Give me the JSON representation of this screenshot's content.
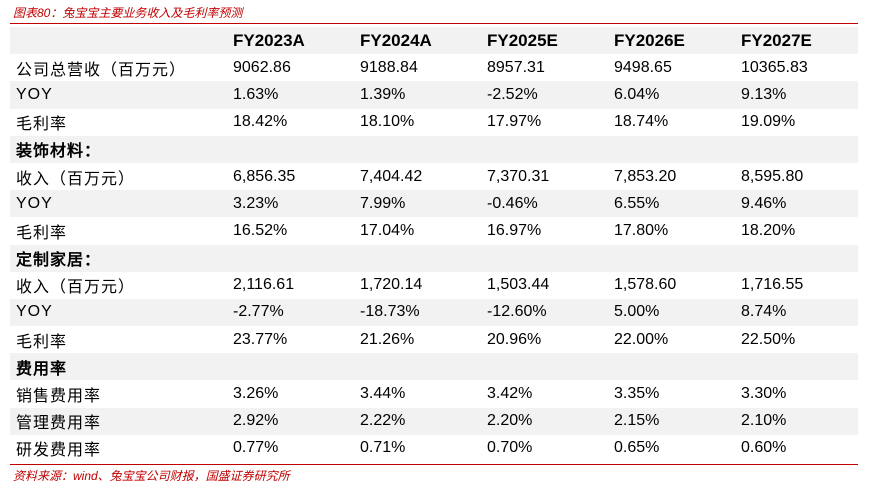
{
  "title": "图表80：兔宝宝主要业务收入及毛利率预测",
  "source": "资料来源：wind、兔宝宝公司财报，国盛证券研究所",
  "headers": [
    "",
    "FY2023A",
    "FY2024A",
    "FY2025E",
    "FY2026E",
    "FY2027E"
  ],
  "rows": [
    {
      "label": "公司总营收（百万元）",
      "values": [
        "9062.86",
        "9188.84",
        "8957.31",
        "9498.65",
        "10365.83"
      ]
    },
    {
      "label": "YOY",
      "values": [
        "1.63%",
        "1.39%",
        "-2.52%",
        "6.04%",
        "9.13%"
      ]
    },
    {
      "label": "毛利率",
      "values": [
        "18.42%",
        "18.10%",
        "17.97%",
        "18.74%",
        "19.09%"
      ]
    },
    {
      "label": "装饰材料：",
      "values": [
        "",
        "",
        "",
        "",
        ""
      ]
    },
    {
      "label": "收入（百万元）",
      "values": [
        "6,856.35",
        "7,404.42",
        "7,370.31",
        "7,853.20",
        "8,595.80"
      ]
    },
    {
      "label": "YOY",
      "values": [
        "3.23%",
        "7.99%",
        "-0.46%",
        "6.55%",
        "9.46%"
      ]
    },
    {
      "label": "毛利率",
      "values": [
        "16.52%",
        "17.04%",
        "16.97%",
        "17.80%",
        "18.20%"
      ]
    },
    {
      "label": "定制家居：",
      "values": [
        "",
        "",
        "",
        "",
        ""
      ]
    },
    {
      "label": "收入（百万元）",
      "values": [
        "2,116.61",
        "1,720.14",
        "1,503.44",
        "1,578.60",
        "1,716.55"
      ]
    },
    {
      "label": "YOY",
      "values": [
        "-2.77%",
        "-18.73%",
        "-12.60%",
        "5.00%",
        "8.74%"
      ]
    },
    {
      "label": "毛利率",
      "values": [
        "23.77%",
        "21.26%",
        "20.96%",
        "22.00%",
        "22.50%"
      ]
    },
    {
      "label": "费用率",
      "values": [
        "",
        "",
        "",
        "",
        ""
      ]
    },
    {
      "label": "销售费用率",
      "values": [
        "3.26%",
        "3.44%",
        "3.42%",
        "3.35%",
        "3.30%"
      ]
    },
    {
      "label": "管理费用率",
      "values": [
        "2.92%",
        "2.22%",
        "2.20%",
        "2.15%",
        "2.10%"
      ]
    },
    {
      "label": "研发费用率",
      "values": [
        "0.77%",
        "0.71%",
        "0.70%",
        "0.65%",
        "0.60%"
      ]
    }
  ],
  "colors": {
    "accent": "#c00000",
    "row_shade": "#f2f2f2"
  }
}
